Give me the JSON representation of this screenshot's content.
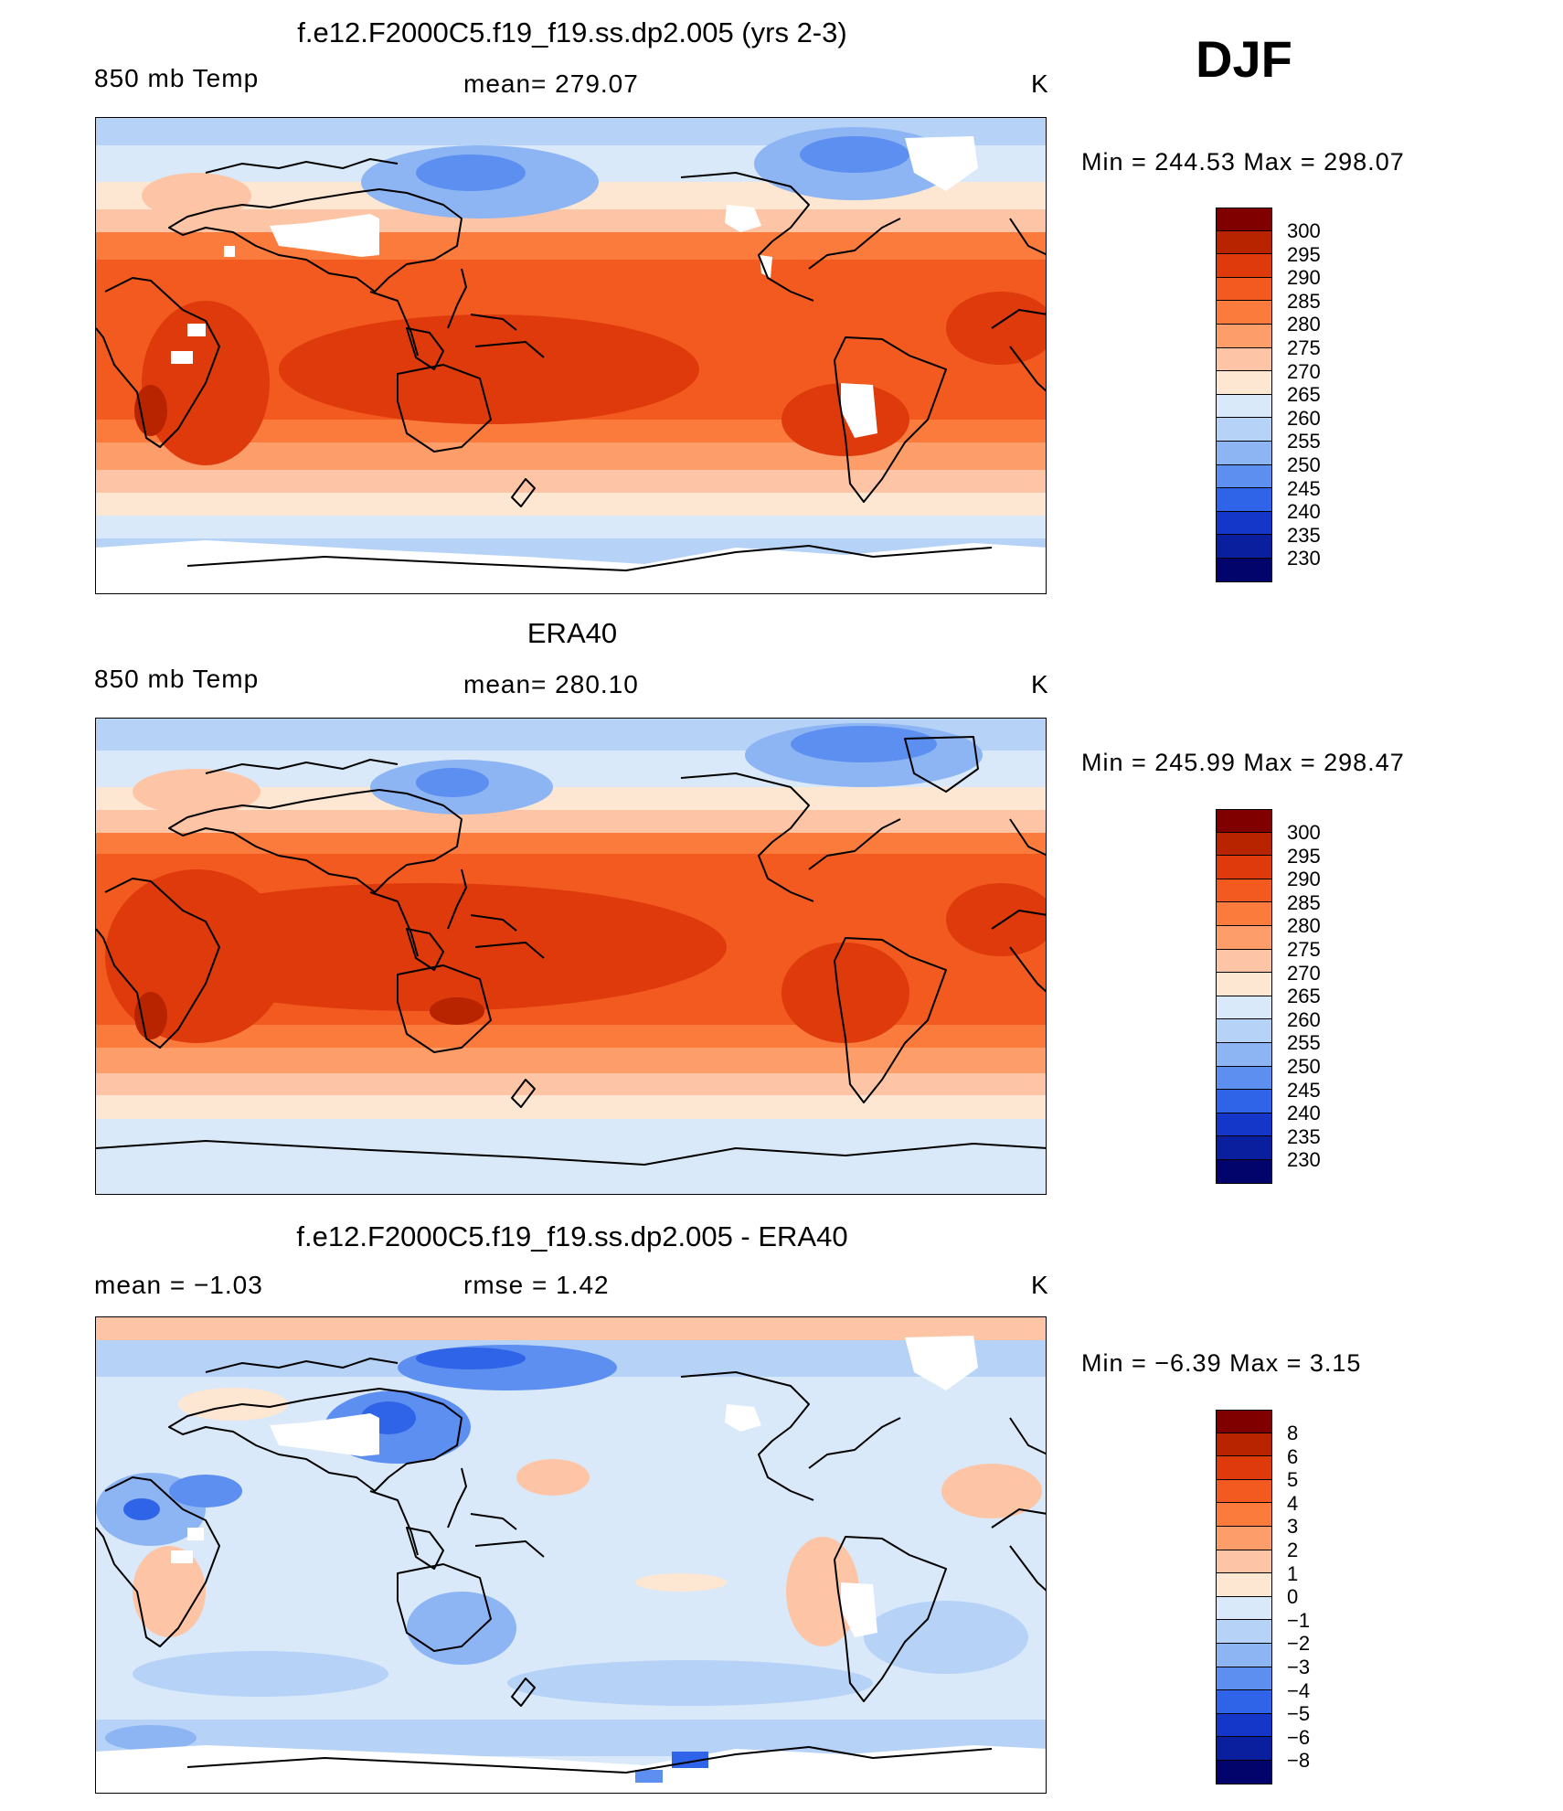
{
  "season": "DJF",
  "panels": [
    {
      "title": "f.e12.F2000C5.f19_f19.ss.dp2.005 (yrs 2-3)",
      "left": "850 mb Temp",
      "center": "mean=  279.07",
      "units": "K",
      "stats": "Min  =  244.53  Max  =  298.07",
      "colorbar_labels": [
        "300",
        "295",
        "290",
        "285",
        "280",
        "275",
        "270",
        "265",
        "260",
        "255",
        "250",
        "245",
        "240",
        "235",
        "230"
      ]
    },
    {
      "title": "ERA40",
      "left": "850 mb Temp",
      "center": "mean=  280.10",
      "units": "K",
      "stats": "Min  =  245.99  Max  =  298.47",
      "colorbar_labels": [
        "300",
        "295",
        "290",
        "285",
        "280",
        "275",
        "270",
        "265",
        "260",
        "255",
        "250",
        "245",
        "240",
        "235",
        "230"
      ]
    },
    {
      "title": "f.e12.F2000C5.f19_f19.ss.dp2.005 - ERA40",
      "left": "mean  =    −1.03",
      "center": "rmse  =     1.42",
      "units": "K",
      "stats": "Min  =    −6.39  Max  =     3.15",
      "colorbar_labels": [
        "8",
        "6",
        "5",
        "4",
        "3",
        "2",
        "1",
        "0",
        "−1",
        "−2",
        "−3",
        "−4",
        "−5",
        "−6",
        "−8"
      ]
    }
  ],
  "colors": {
    "palette": [
      "#800000",
      "#b82400",
      "#de3a0b",
      "#f25a1f",
      "#fb7b3d",
      "#fc9d6a",
      "#fdc5a5",
      "#fde6d2",
      "#d9e9f9",
      "#b6d2f7",
      "#8db5f4",
      "#5c8ff0",
      "#2f63e8",
      "#1436c9",
      "#0a1f9e",
      "#02036b"
    ],
    "coast": "#000000",
    "missing": "#ffffff"
  }
}
